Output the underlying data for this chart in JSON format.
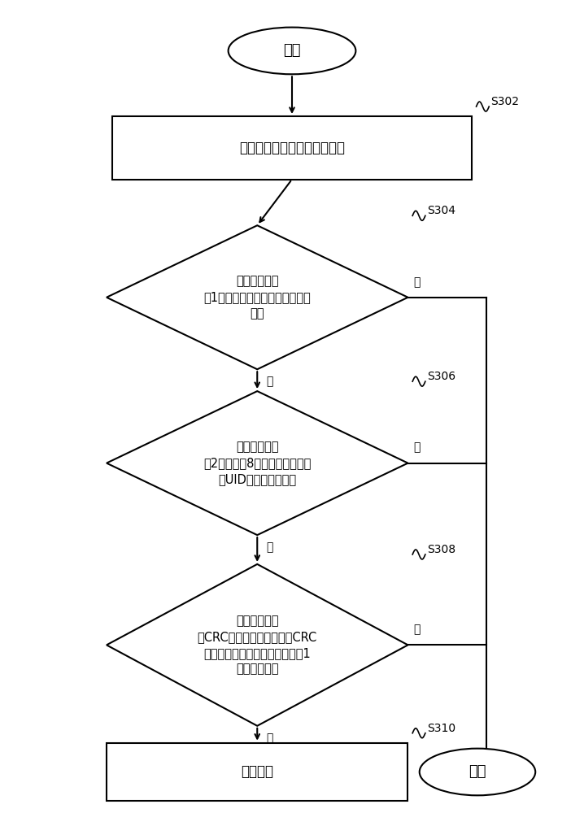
{
  "background_color": "#ffffff",
  "line_color": "#000000",
  "text_color": "#000000",
  "start_text": "开始",
  "end_text": "结束",
  "s302_text": "接收控制终端发送的控制指令",
  "s302_label": "S302",
  "s304_text": "取控制指令的\n第1字节比对指令代码，验证是否\n匹配",
  "s304_label": "S304",
  "s306_text": "取控制指令的\n第2字节至第8字节比对电子雷管\n的UID，验证是否匹配",
  "s306_label": "S306",
  "s308_text": "取控制指令的\n除CRC字节外所有数据进行CRC\n计算，验证是否与控制指令最后1\n字节是否匹配",
  "s308_label": "S308",
  "s310_text": "写入参数",
  "s310_label": "S310",
  "yes_text": "是",
  "no_text": "否"
}
